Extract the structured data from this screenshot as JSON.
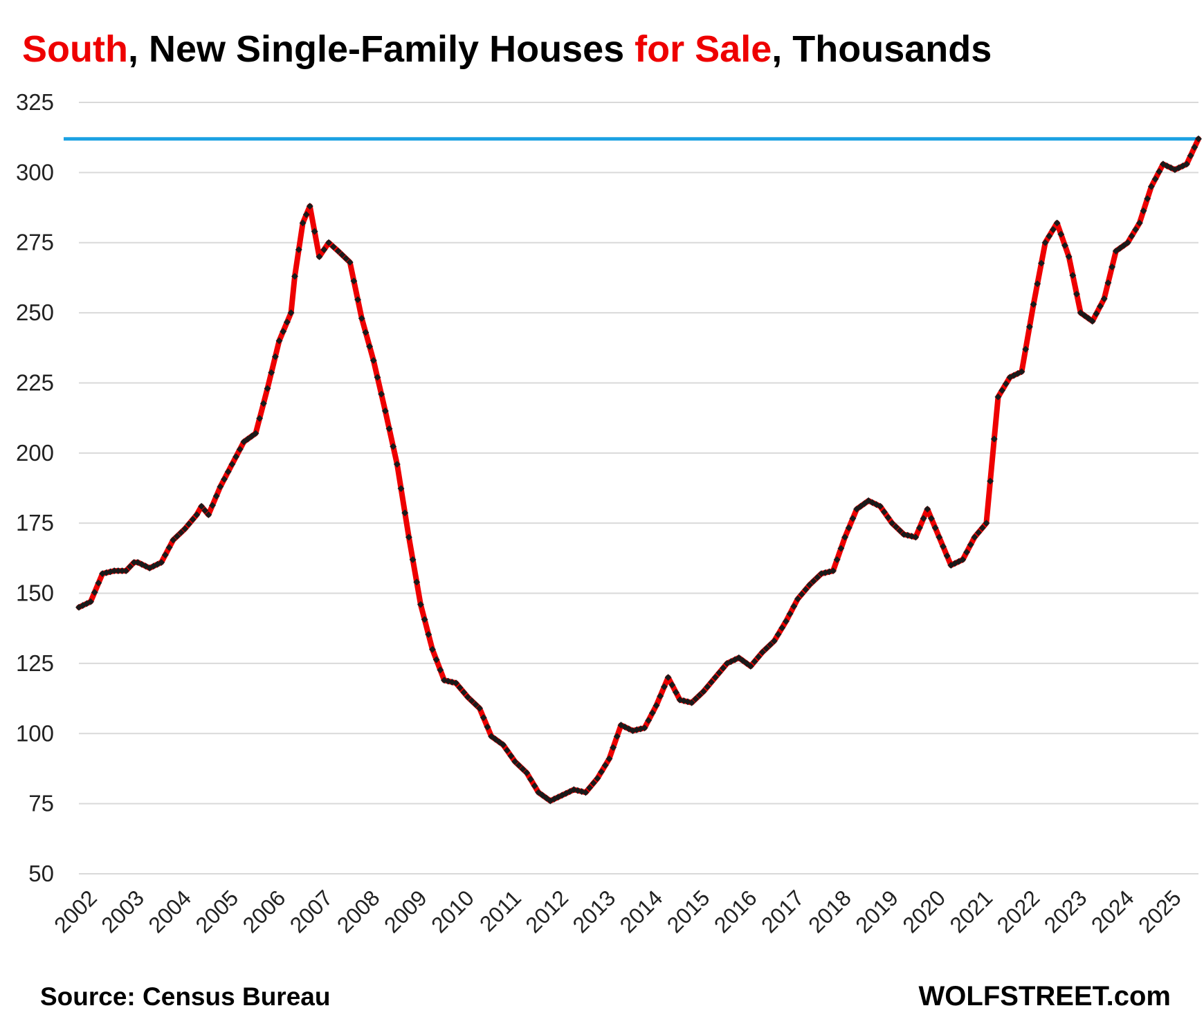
{
  "title": {
    "part1": "South",
    "part2": ", New Single-Family Houses ",
    "part3": "for Sale",
    "part4": ", Thousands"
  },
  "source": "Source: Census Bureau",
  "brand": "WOLFSTREET.com",
  "colors": {
    "line": "#ee0000",
    "marker": "#1a1a1a",
    "reference": "#1ba1e2",
    "grid": "#d9d9d9",
    "title_highlight": "#ee0000"
  },
  "chart_data": {
    "type": "line",
    "ylim": [
      50,
      325
    ],
    "yticks": [
      50,
      75,
      100,
      125,
      150,
      175,
      200,
      225,
      250,
      275,
      300,
      325
    ],
    "xlim": [
      2002,
      2025.75
    ],
    "xticks": [
      2002,
      2003,
      2004,
      2005,
      2006,
      2007,
      2008,
      2009,
      2010,
      2011,
      2012,
      2013,
      2014,
      2015,
      2016,
      2017,
      2018,
      2019,
      2020,
      2021,
      2022,
      2023,
      2024,
      2025
    ],
    "grid": true,
    "reference_line": 312,
    "series": [
      {
        "x": [
          2002.0,
          2002.25,
          2002.5,
          2002.75,
          2003.0,
          2003.17,
          2003.25,
          2003.5,
          2003.75,
          2004.0,
          2004.25,
          2004.5,
          2004.6,
          2004.75,
          2005.0,
          2005.25,
          2005.5,
          2005.75,
          2006.0,
          2006.25,
          2006.5,
          2006.58,
          2006.75,
          2006.9,
          2007.1,
          2007.3,
          2007.5,
          2007.75,
          2008.0,
          2008.25,
          2008.5,
          2008.75,
          2009.0,
          2009.25,
          2009.5,
          2009.75,
          2010.0,
          2010.25,
          2010.5,
          2010.75,
          2011.0,
          2011.25,
          2011.5,
          2011.75,
          2012.0,
          2012.25,
          2012.5,
          2012.75,
          2013.0,
          2013.25,
          2013.5,
          2013.75,
          2014.0,
          2014.25,
          2014.5,
          2014.75,
          2015.0,
          2015.25,
          2015.5,
          2015.75,
          2016.0,
          2016.25,
          2016.5,
          2016.75,
          2017.0,
          2017.25,
          2017.5,
          2017.75,
          2018.0,
          2018.25,
          2018.5,
          2018.75,
          2019.0,
          2019.25,
          2019.5,
          2019.75,
          2020.0,
          2020.25,
          2020.5,
          2020.75,
          2021.0,
          2021.25,
          2021.5,
          2021.75,
          2022.0,
          2022.25,
          2022.5,
          2022.75,
          2023.0,
          2023.25,
          2023.5,
          2023.75,
          2024.0,
          2024.25,
          2024.5,
          2024.75,
          2025.0,
          2025.25,
          2025.5,
          2025.75
        ],
        "values": [
          145,
          147,
          157,
          158,
          158,
          161,
          161,
          159,
          161,
          169,
          173,
          178,
          181,
          178,
          188,
          196,
          204,
          207,
          223,
          240,
          250,
          263,
          282,
          288,
          270,
          275,
          272,
          268,
          248,
          233,
          215,
          196,
          170,
          146,
          130,
          119,
          118,
          113,
          109,
          99,
          96,
          90,
          86,
          79,
          76,
          78,
          80,
          79,
          84,
          91,
          103,
          101,
          102,
          110,
          120,
          112,
          111,
          115,
          120,
          125,
          127,
          124,
          129,
          133,
          140,
          148,
          153,
          157,
          158,
          170,
          180,
          183,
          181,
          175,
          171,
          170,
          180,
          170,
          160,
          162,
          170,
          175,
          220,
          227,
          229,
          253,
          275,
          282,
          270,
          250,
          247,
          255,
          272,
          275,
          282,
          295,
          303,
          301,
          303,
          312
        ]
      }
    ]
  }
}
